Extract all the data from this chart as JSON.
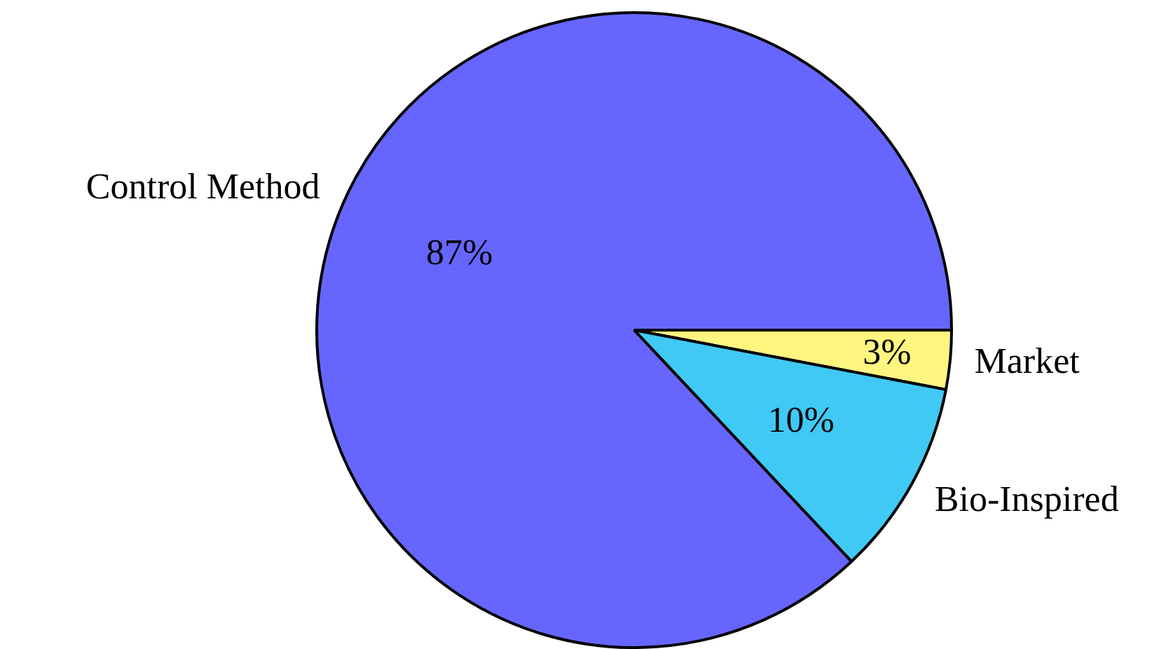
{
  "chart_data": {
    "type": "pie",
    "categories": [
      "Market",
      "Bio-Inspired",
      "Control Method"
    ],
    "values": [
      3,
      10,
      87
    ],
    "colors": [
      "#fff57f",
      "#40c9f5",
      "#6666ff"
    ],
    "value_labels": [
      "3%",
      "10%",
      "87%"
    ],
    "legend": false
  }
}
